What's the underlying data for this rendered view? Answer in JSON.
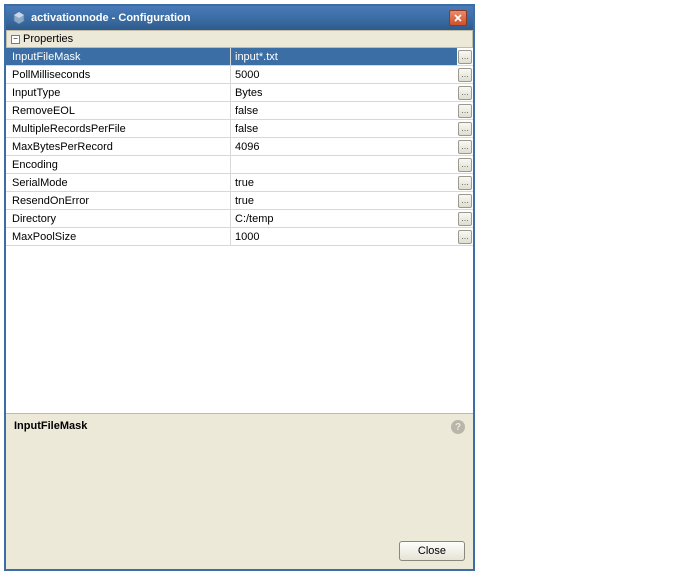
{
  "window": {
    "title": "activationnode - Configuration"
  },
  "section": {
    "title": "Properties"
  },
  "properties": [
    {
      "name": "InputFileMask",
      "value": "input*.txt",
      "selected": true
    },
    {
      "name": "PollMilliseconds",
      "value": "5000",
      "selected": false
    },
    {
      "name": "InputType",
      "value": "Bytes",
      "selected": false
    },
    {
      "name": "RemoveEOL",
      "value": "false",
      "selected": false
    },
    {
      "name": "MultipleRecordsPerFile",
      "value": "false",
      "selected": false
    },
    {
      "name": "MaxBytesPerRecord",
      "value": "4096",
      "selected": false
    },
    {
      "name": "Encoding",
      "value": "",
      "selected": false
    },
    {
      "name": "SerialMode",
      "value": "true",
      "selected": false
    },
    {
      "name": "ResendOnError",
      "value": "true",
      "selected": false
    },
    {
      "name": "Directory",
      "value": "C:/temp",
      "selected": false
    },
    {
      "name": "MaxPoolSize",
      "value": "1000",
      "selected": false
    }
  ],
  "help": {
    "title": "InputFileMask"
  },
  "buttons": {
    "close": "Close"
  },
  "colors": {
    "title_gradient_top": "#4a7ab8",
    "title_gradient_bottom": "#2f5a8c",
    "panel_bg": "#ece9d8",
    "selected_bg": "#3b6ea5",
    "border": "#c0bca8",
    "grid_border": "#d8d8d8"
  }
}
